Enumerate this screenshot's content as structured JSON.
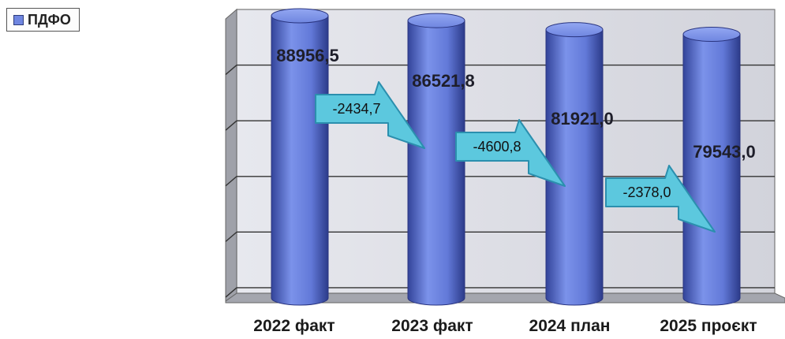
{
  "chart_data": {
    "type": "bar",
    "style": "3d-cylinder",
    "categories": [
      "2022 факт",
      "2023 факт",
      "2024 план",
      "2025 проєкт"
    ],
    "series": [
      {
        "name": "ПДФО",
        "values": [
          88956.5,
          86521.8,
          81921.0,
          79543.0
        ]
      }
    ],
    "data_labels": [
      "88956,5",
      "86521,8",
      "81921,0",
      "79543,0"
    ],
    "changes": [
      {
        "from": 0,
        "to": 1,
        "label": "-2434,7"
      },
      {
        "from": 1,
        "to": 2,
        "label": "-4600,8"
      },
      {
        "from": 2,
        "to": 3,
        "label": "-2378,0"
      }
    ],
    "grid": true,
    "legend_position": "top-left",
    "colors": {
      "bar": "#6f86e0",
      "bar_dark": "#33449a",
      "arrow": "#5cc8de",
      "arrow_border": "#2b8fae",
      "wall": "#dcdde4",
      "floor": "#a4a6ae"
    }
  }
}
